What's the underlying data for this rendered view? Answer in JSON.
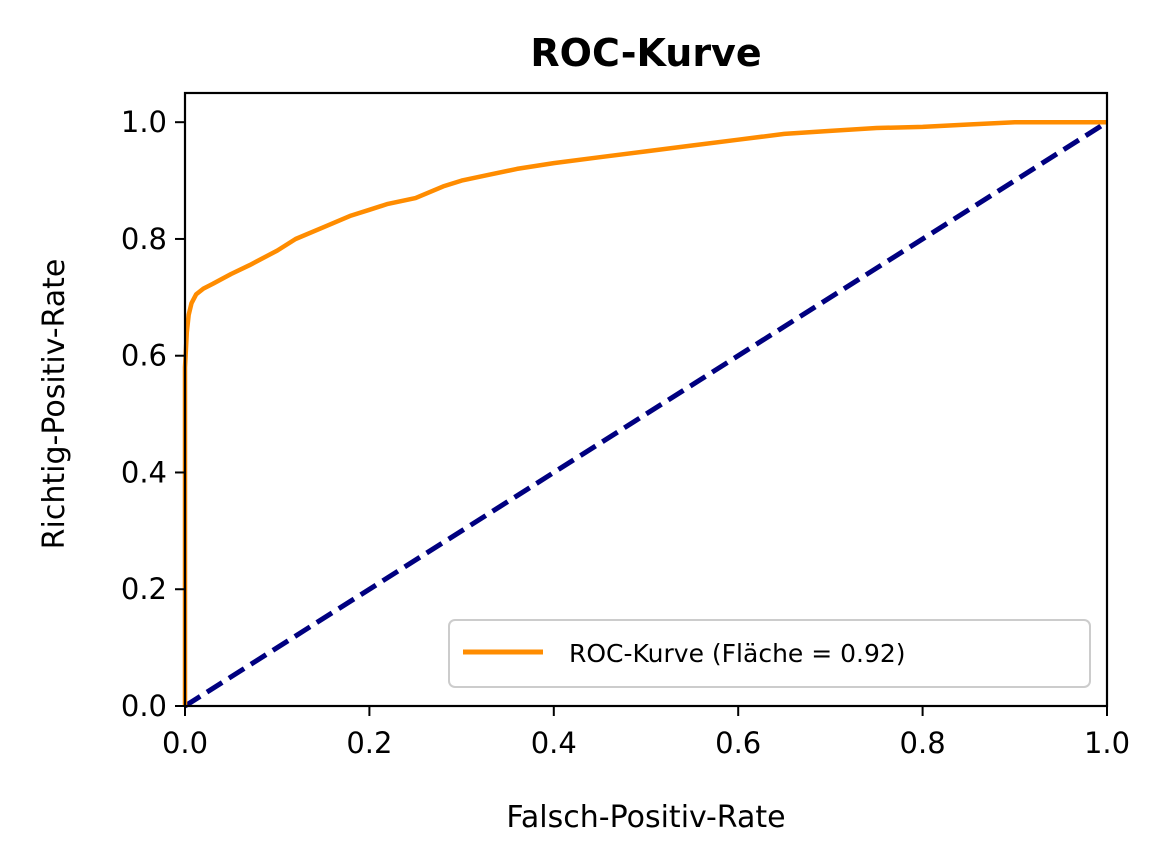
{
  "chart_data": {
    "type": "line",
    "title": "ROC-Kurve",
    "xlabel": "Falsch-Positiv-Rate",
    "ylabel": "Richtig-Positiv-Rate",
    "xlim": [
      0.0,
      1.0
    ],
    "ylim": [
      0.0,
      1.05
    ],
    "x_ticks": [
      "0.0",
      "0.2",
      "0.4",
      "0.6",
      "0.8",
      "1.0"
    ],
    "y_ticks": [
      "0.0",
      "0.2",
      "0.4",
      "0.6",
      "0.8",
      "1.0"
    ],
    "grid": false,
    "legend_position": "lower-right",
    "series": [
      {
        "name": "ROC-Kurve (Fläche = 0.92)",
        "color": "#ff8c00",
        "style": "solid",
        "x": [
          0.0,
          0.0,
          0.002,
          0.004,
          0.007,
          0.012,
          0.02,
          0.03,
          0.05,
          0.07,
          0.1,
          0.12,
          0.15,
          0.18,
          0.2,
          0.22,
          0.25,
          0.28,
          0.3,
          0.33,
          0.36,
          0.4,
          0.45,
          0.5,
          0.55,
          0.6,
          0.65,
          0.7,
          0.75,
          0.8,
          0.85,
          0.9,
          0.95,
          1.0
        ],
        "y": [
          0.0,
          0.58,
          0.64,
          0.67,
          0.69,
          0.705,
          0.715,
          0.723,
          0.74,
          0.755,
          0.78,
          0.8,
          0.82,
          0.84,
          0.85,
          0.86,
          0.87,
          0.89,
          0.9,
          0.91,
          0.92,
          0.93,
          0.94,
          0.95,
          0.96,
          0.97,
          0.98,
          0.985,
          0.99,
          0.992,
          0.996,
          1.0,
          1.0,
          1.0
        ]
      },
      {
        "name": "",
        "color": "#000080",
        "style": "dashed",
        "x": [
          0.0,
          1.0
        ],
        "y": [
          0.0,
          1.0
        ]
      }
    ]
  }
}
